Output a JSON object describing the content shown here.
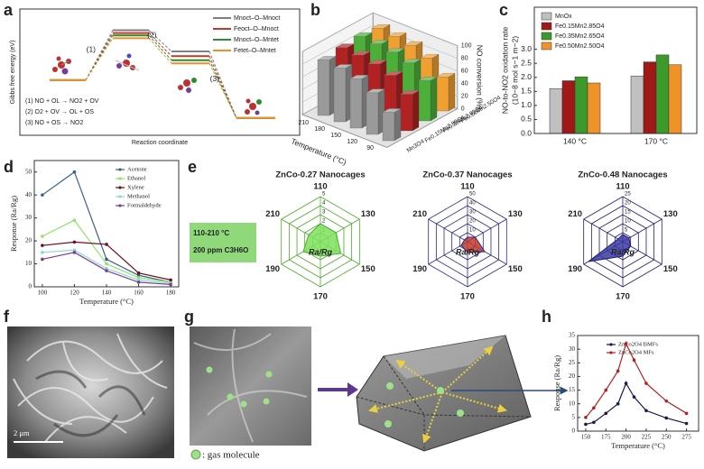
{
  "panel_labels": [
    "a",
    "b",
    "c",
    "d",
    "e",
    "f",
    "g",
    "h"
  ],
  "chart_data": [
    {
      "type": "energy",
      "ylabel": "Gibbs free energy (eV)",
      "xlabel": "Reaction coordinate",
      "ylim": [
        -1.2,
        1.6
      ],
      "steps": [
        "(1)",
        "(2)",
        "(3)"
      ],
      "equations": [
        "(1) NO + OL → NO2 + OV",
        "(2) O2 + OV → OL + OS",
        "(3) NO + OS → NO2"
      ],
      "series": [
        {
          "name": "Mnoct–O–Mnoct",
          "color": "#7f7f7f",
          "values": [
            0,
            1.25,
            0.72,
            -0.95
          ]
        },
        {
          "name": "Feoct–O–Mnoct",
          "color": "#c0392b",
          "values": [
            0,
            1.18,
            0.6,
            -0.95
          ]
        },
        {
          "name": "Mnoct–O–Mntet",
          "color": "#2e8b2e",
          "values": [
            0,
            1.12,
            0.5,
            -0.95
          ]
        },
        {
          "name": "Fetet–O–Mntet",
          "color": "#e8922c",
          "values": [
            0,
            1.05,
            0.42,
            -0.95
          ]
        }
      ]
    },
    {
      "type": "bar3d",
      "xlabel": "Temperature (°C)",
      "zlabel": "NO conversion (%)",
      "categories": [
        "210",
        "180",
        "150",
        "120",
        "90"
      ],
      "zlim": [
        0,
        100
      ],
      "zticks": [
        0,
        20,
        40,
        60,
        80,
        100
      ],
      "series": [
        {
          "name": "Mn3O4",
          "color": "#9a9a9a",
          "values": [
            88,
            85,
            78,
            66,
            45
          ]
        },
        {
          "name": "Fe0.15Mn2.85O4",
          "color": "#b22222",
          "values": [
            92,
            90,
            86,
            78,
            58
          ]
        },
        {
          "name": "Fe0.35Mn2.65O4",
          "color": "#4caf3a",
          "values": [
            94,
            92,
            89,
            82,
            64
          ]
        },
        {
          "name": "Fe0.50Mn2.50O4",
          "color": "#f0a030",
          "values": [
            91,
            88,
            84,
            74,
            54
          ]
        }
      ]
    },
    {
      "type": "bar",
      "ylabel": "NO-to-NO2 oxidation rate",
      "ylabel_unit": "(10−8 mol s−1 m−2)",
      "categories": [
        "140 °C",
        "170 °C"
      ],
      "ylim": [
        0,
        4.5
      ],
      "yticks": [
        {
          "value": 0,
          "label": "0.0"
        },
        0.5,
        {
          "value": 1,
          "label": "1.0"
        },
        1.5,
        {
          "value": 2,
          "label": "2.0"
        },
        2.5,
        {
          "value": 3,
          "label": "3.0"
        }
      ],
      "series": [
        {
          "name": "MnOx",
          "color": "#c0c0c0",
          "values": [
            1.6,
            2.05
          ]
        },
        {
          "name": "Fe0.15Mn2.85O4",
          "color": "#a01818",
          "values": [
            1.88,
            2.55
          ]
        },
        {
          "name": "Fe0.35Mn2.65O4",
          "color": "#3c9a2a",
          "values": [
            2.02,
            2.8
          ]
        },
        {
          "name": "Fe0.50Mn2.50O4",
          "color": "#f0922a",
          "values": [
            1.8,
            2.45
          ]
        }
      ]
    },
    {
      "type": "line",
      "xlabel": "Temperature (°C)",
      "ylabel": "Response (Ra/Rg)",
      "x": [
        100,
        120,
        140,
        160,
        180
      ],
      "xlim": [
        95,
        185
      ],
      "xticks": [
        100,
        120,
        140,
        160,
        180
      ],
      "ylim": [
        0,
        55
      ],
      "yticks": [
        0,
        10,
        20,
        30,
        40,
        50
      ],
      "series": [
        {
          "name": "Acetone",
          "color": "#3e5f8a",
          "values": [
            40,
            50,
            12,
            5,
            2
          ]
        },
        {
          "name": "Ethanol",
          "color": "#8ee36a",
          "values": [
            22,
            29,
            10,
            4,
            2
          ]
        },
        {
          "name": "Xylene",
          "color": "#6b0f1a",
          "values": [
            18,
            19.5,
            18.5,
            6,
            3
          ]
        },
        {
          "name": "Methanol",
          "color": "#8fd8d0",
          "values": [
            15,
            16,
            8,
            3,
            1.5
          ]
        },
        {
          "name": "Formaldehyde",
          "color": "#7a3c9a",
          "values": [
            12,
            15,
            7,
            2,
            1
          ]
        }
      ]
    },
    {
      "type": "radar",
      "title": "ZnCo-0.27 Nanocages",
      "axes": [
        "110",
        "130",
        "150",
        "170",
        "190",
        "210"
      ],
      "rlim": [
        0,
        5
      ],
      "rticks": [
        1,
        2,
        3,
        4,
        5
      ],
      "center_label": "Ra/Rg",
      "color": "#7de05a",
      "edge": "#4caa2a",
      "values": [
        2.0,
        2.0,
        2.6,
        1.6,
        2.2,
        1.5
      ],
      "annotations": [
        "110-210 °C",
        "200 ppm C3H6O"
      ]
    },
    {
      "type": "radar",
      "title": "ZnCo-0.37 Nanocages",
      "axes": [
        "110",
        "130",
        "150",
        "170",
        "190",
        "210"
      ],
      "rlim": [
        0,
        50
      ],
      "rticks": [
        10,
        20,
        30,
        40,
        50
      ],
      "center_label": "Ra/Rg",
      "color": "#c0392b",
      "edge": "#2a2a8a",
      "values": [
        5,
        10,
        22,
        12,
        8,
        4
      ]
    },
    {
      "type": "radar",
      "title": "ZnCo-0.48 Nanocages",
      "axes": [
        "110",
        "130",
        "150",
        "170",
        "190",
        "210"
      ],
      "rlim": [
        0,
        25
      ],
      "rticks": [
        5,
        10,
        15,
        20,
        25
      ],
      "center_label": "Ra/Rg",
      "color": "#3a3aa0",
      "edge": "#1e1e70",
      "values": [
        4,
        4,
        5,
        8,
        22,
        3
      ]
    },
    {
      "type": "line",
      "xlabel": "Temperature (°C)",
      "ylabel": "Response (Ra/Rg)",
      "x": [
        150,
        160,
        175,
        190,
        200,
        210,
        225,
        250,
        275
      ],
      "xlim": [
        140,
        290
      ],
      "xticks": [
        150,
        175,
        200,
        225,
        250,
        275
      ],
      "ylim": [
        0,
        35
      ],
      "yticks": [
        0,
        5,
        10,
        15,
        20,
        25,
        30,
        35
      ],
      "series": [
        {
          "name": "ZnCo2O4 BMFs",
          "color": "#1a1a4a",
          "values": [
            2.5,
            3.2,
            6.5,
            10,
            17.5,
            12.5,
            7.5,
            4.8,
            2.8
          ],
          "errors": [
            0.3,
            0.4,
            0.5,
            0.6,
            0.8,
            0.6,
            0.5,
            0.4,
            0.3
          ]
        },
        {
          "name": "ZnCo2O4 MFs",
          "color": "#b22222",
          "values": [
            5,
            8.5,
            15,
            22,
            32,
            26,
            17.5,
            11,
            6.5
          ],
          "errors": [
            0.4,
            0.5,
            0.6,
            0.7,
            0.9,
            0.7,
            0.6,
            0.5,
            0.4
          ]
        }
      ]
    }
  ],
  "images": {
    "f": {
      "scale_bar": "2 μm"
    },
    "g": {
      "legend": ": gas molecule"
    }
  }
}
